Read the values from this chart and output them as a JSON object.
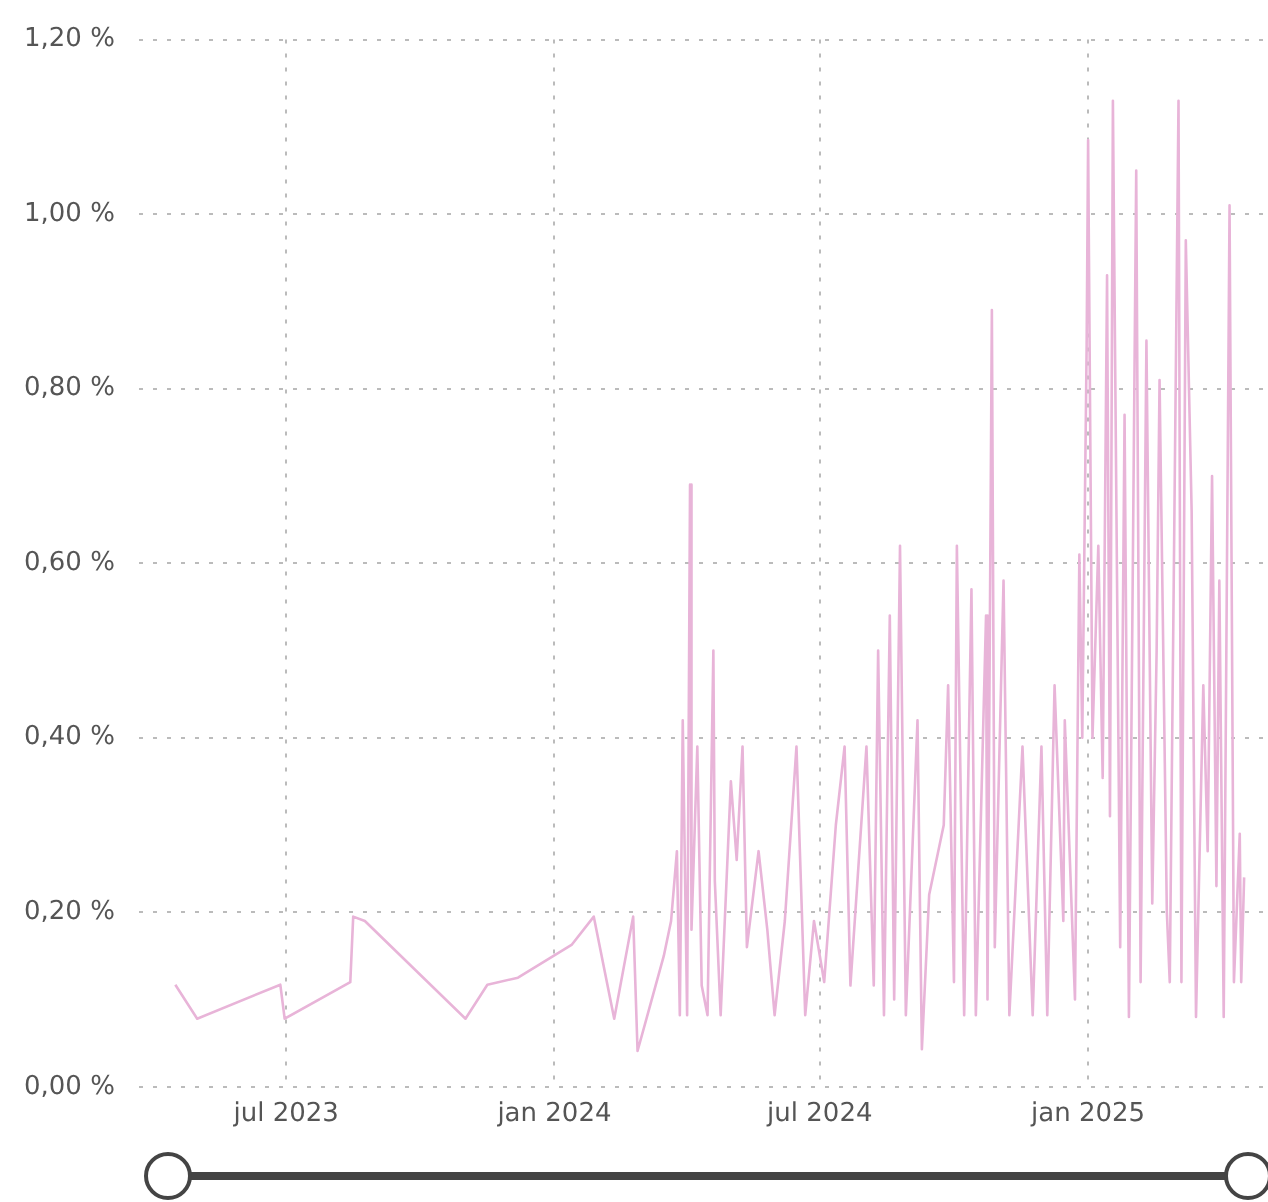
{
  "chart_data": {
    "type": "line",
    "xlim": [
      "2023-03-22",
      "2025-05-03"
    ],
    "xticks": [
      {
        "value": "2023-07-01",
        "label": "jul 2023"
      },
      {
        "value": "2024-01-01",
        "label": "jan 2024"
      },
      {
        "value": "2024-07-01",
        "label": "jul 2024"
      },
      {
        "value": "2025-01-01",
        "label": "jan 2025"
      }
    ],
    "ylim": [
      0,
      1.2
    ],
    "yticks": [
      {
        "value": 0,
        "label": "0,00 %"
      },
      {
        "value": 0.2,
        "label": "0,20 %"
      },
      {
        "value": 0.4,
        "label": "0,40 %"
      },
      {
        "value": 0.6,
        "label": "0,60 %"
      },
      {
        "value": 0.8,
        "label": "0,80 %"
      },
      {
        "value": 1.0,
        "label": "1,00 %"
      },
      {
        "value": 1.2,
        "label": "1,20 %"
      }
    ],
    "grid": true,
    "marker": "none",
    "line_style": "solid",
    "x": [
      "2023-04-16",
      "2023-05-01",
      "2023-06-27",
      "2023-06-30",
      "2023-08-14",
      "2023-08-16",
      "2023-08-24",
      "2023-11-01",
      "2023-11-16",
      "2023-12-07",
      "2024-01-13",
      "2024-01-28",
      "2024-02-11",
      "2024-02-24",
      "2024-02-27",
      "2024-03-16",
      "2024-03-21",
      "2024-03-25",
      "2024-03-27",
      "2024-03-29",
      "2024-04-01",
      "2024-04-03",
      "2024-04-04",
      "2024-04-08",
      "2024-04-11",
      "2024-04-15",
      "2024-04-19",
      "2024-04-20",
      "2024-04-24",
      "2024-05-01",
      "2024-05-05",
      "2024-05-09",
      "2024-05-12",
      "2024-05-20",
      "2024-05-26",
      "2024-05-31",
      "2024-06-07",
      "2024-06-15",
      "2024-06-21",
      "2024-06-27",
      "2024-07-04",
      "2024-07-12",
      "2024-07-18",
      "2024-07-22",
      "2024-08-02",
      "2024-08-07",
      "2024-08-10",
      "2024-08-14",
      "2024-08-18",
      "2024-08-21",
      "2024-08-25",
      "2024-08-29",
      "2024-09-06",
      "2024-09-09",
      "2024-09-14",
      "2024-09-24",
      "2024-09-27",
      "2024-10-01",
      "2024-10-03",
      "2024-10-08",
      "2024-10-13",
      "2024-10-16",
      "2024-10-23",
      "2024-10-24",
      "2024-10-27",
      "2024-10-29",
      "2024-11-04",
      "2024-11-08",
      "2024-11-17",
      "2024-11-24",
      "2024-11-30",
      "2024-12-04",
      "2024-12-09",
      "2024-12-15",
      "2024-12-16",
      "2024-12-23",
      "2024-12-26",
      "2024-12-28",
      "2024-12-31",
      "2025-01-01",
      "2025-01-04",
      "2025-01-08",
      "2025-01-11",
      "2025-01-14",
      "2025-01-16",
      "2025-01-18",
      "2025-01-23",
      "2025-01-26",
      "2025-01-29",
      "2025-02-03",
      "2025-02-06",
      "2025-02-10",
      "2025-02-14",
      "2025-02-17",
      "2025-02-19",
      "2025-02-24",
      "2025-02-26",
      "2025-03-04",
      "2025-03-06",
      "2025-03-09",
      "2025-03-13",
      "2025-03-16",
      "2025-03-21",
      "2025-03-24",
      "2025-03-27",
      "2025-03-30",
      "2025-04-01",
      "2025-04-04",
      "2025-04-08",
      "2025-04-11",
      "2025-04-15",
      "2025-04-16",
      "2025-04-18"
    ],
    "series": [
      {
        "color": "#e8b4d8",
        "values": [
          0.117,
          0.078,
          0.117,
          0.078,
          0.12,
          0.195,
          0.19,
          0.078,
          0.117,
          0.125,
          0.163,
          0.195,
          0.078,
          0.195,
          0.041,
          0.15,
          0.19,
          0.27,
          0.082,
          0.42,
          0.082,
          0.69,
          0.18,
          0.39,
          0.116,
          0.082,
          0.5,
          0.236,
          0.082,
          0.35,
          0.26,
          0.39,
          0.16,
          0.27,
          0.18,
          0.082,
          0.19,
          0.39,
          0.082,
          0.19,
          0.12,
          0.3,
          0.39,
          0.116,
          0.39,
          0.116,
          0.5,
          0.082,
          0.54,
          0.1,
          0.62,
          0.082,
          0.42,
          0.043,
          0.22,
          0.3,
          0.46,
          0.12,
          0.62,
          0.082,
          0.57,
          0.082,
          0.54,
          0.1,
          0.89,
          0.16,
          0.58,
          0.082,
          0.39,
          0.082,
          0.39,
          0.082,
          0.46,
          0.19,
          0.42,
          0.1,
          0.61,
          0.4,
          0.85,
          1.085,
          0.4,
          0.62,
          0.354,
          0.93,
          0.31,
          1.13,
          0.16,
          0.77,
          0.08,
          1.05,
          0.12,
          0.855,
          0.21,
          0.5,
          0.81,
          0.2,
          0.12,
          1.13,
          0.12,
          0.97,
          0.66,
          0.08,
          0.46,
          0.27,
          0.7,
          0.23,
          0.58,
          0.08,
          1.01,
          0.12,
          0.29,
          0.12,
          0.24
        ]
      }
    ]
  }
}
